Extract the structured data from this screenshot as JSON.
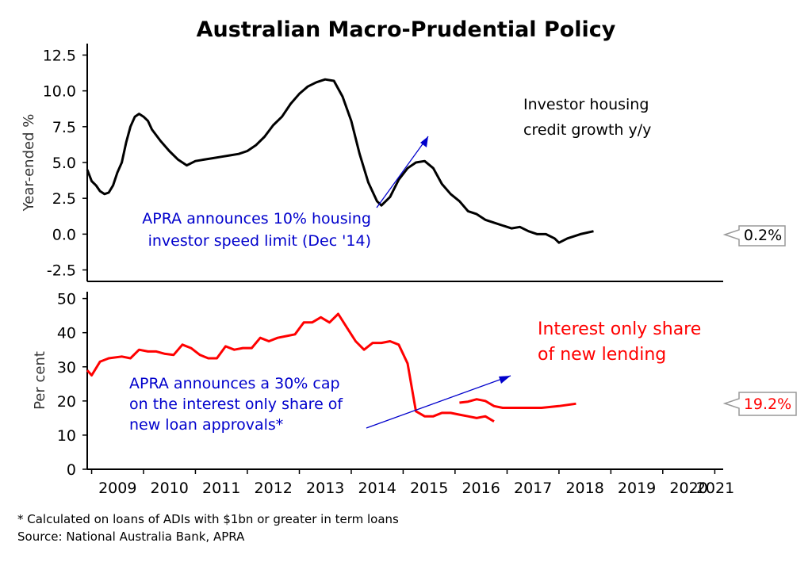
{
  "colors": {
    "investor_line": "#000000",
    "interest_only_line": "#ff0000",
    "annotation": "#0000cc",
    "callout_border": "#999999"
  },
  "chart_data": {
    "title": "Australian Macro-Prudential Policy",
    "x_axis": {
      "type": "date",
      "range": [
        "2008-12-01",
        "2021-03-01"
      ],
      "tick_labels": [
        "2009",
        "2010",
        "2011",
        "2012",
        "2013",
        "2014",
        "2015",
        "2016",
        "2017",
        "2018",
        "2019",
        "2020",
        "2021"
      ]
    },
    "panels": [
      {
        "type": "line",
        "ylabel": "Year-ended %",
        "ylim": [
          -3.3,
          13.3
        ],
        "y_ticks": [
          12.5,
          10.0,
          7.5,
          5.0,
          2.5,
          0.0,
          -2.5
        ],
        "y_tick_labels": [
          "12.5",
          "10.0",
          "7.5",
          "5.0",
          "2.5",
          "0.0",
          "-2.5"
        ],
        "series": [
          {
            "name": "Investor housing credit growth y/y",
            "label_lines": [
              "Investor housing",
              "credit growth y/y"
            ],
            "last_value_label": "0.2%",
            "points": [
              [
                "2008-12",
                4.5
              ],
              [
                "2009-01",
                3.7
              ],
              [
                "2009-02",
                3.4
              ],
              [
                "2009-03",
                3.0
              ],
              [
                "2009-04",
                2.8
              ],
              [
                "2009-05",
                2.9
              ],
              [
                "2009-06",
                3.4
              ],
              [
                "2009-07",
                4.3
              ],
              [
                "2009-08",
                5.0
              ],
              [
                "2009-09",
                6.4
              ],
              [
                "2009-10",
                7.5
              ],
              [
                "2009-11",
                8.2
              ],
              [
                "2009-12",
                8.4
              ],
              [
                "2010-01",
                8.2
              ],
              [
                "2010-02",
                7.9
              ],
              [
                "2010-03",
                7.3
              ],
              [
                "2010-05",
                6.5
              ],
              [
                "2010-07",
                5.8
              ],
              [
                "2010-09",
                5.2
              ],
              [
                "2010-11",
                4.8
              ],
              [
                "2011-01",
                5.1
              ],
              [
                "2011-03",
                5.2
              ],
              [
                "2011-05",
                5.3
              ],
              [
                "2011-07",
                5.4
              ],
              [
                "2011-09",
                5.5
              ],
              [
                "2011-11",
                5.6
              ],
              [
                "2012-01",
                5.8
              ],
              [
                "2012-03",
                6.2
              ],
              [
                "2012-05",
                6.8
              ],
              [
                "2012-07",
                7.6
              ],
              [
                "2012-09",
                8.2
              ],
              [
                "2012-11",
                9.1
              ],
              [
                "2013-01",
                9.8
              ],
              [
                "2013-03",
                10.3
              ],
              [
                "2013-05",
                10.6
              ],
              [
                "2013-07",
                10.8
              ],
              [
                "2013-09",
                10.7
              ],
              [
                "2013-11",
                9.6
              ],
              [
                "2014-01",
                7.9
              ],
              [
                "2014-03",
                5.6
              ],
              [
                "2014-05",
                3.6
              ],
              [
                "2014-07",
                2.3
              ],
              [
                "2014-08",
                2.0
              ],
              [
                "2014-10",
                2.6
              ],
              [
                "2014-12",
                3.8
              ],
              [
                "2015-02",
                4.6
              ],
              [
                "2015-04",
                5.0
              ],
              [
                "2015-06",
                5.1
              ],
              [
                "2015-08",
                4.6
              ],
              [
                "2015-10",
                3.5
              ],
              [
                "2015-12",
                2.8
              ],
              [
                "2016-02",
                2.3
              ],
              [
                "2016-04",
                1.6
              ],
              [
                "2016-06",
                1.4
              ],
              [
                "2016-08",
                1.0
              ],
              [
                "2016-10",
                0.8
              ],
              [
                "2016-12",
                0.6
              ],
              [
                "2017-02",
                0.4
              ],
              [
                "2017-04",
                0.5
              ],
              [
                "2017-06",
                0.2
              ],
              [
                "2017-08",
                0.0
              ],
              [
                "2017-10",
                0.0
              ],
              [
                "2017-12",
                -0.3
              ],
              [
                "2018-01",
                -0.6
              ],
              [
                "2018-03",
                -0.3
              ],
              [
                "2018-06",
                0.0
              ],
              [
                "2018-09",
                0.2
              ]
            ]
          }
        ]
      },
      {
        "type": "line",
        "ylabel": "Per cent",
        "ylim": [
          0,
          52
        ],
        "y_ticks": [
          50,
          40,
          30,
          20,
          10,
          0
        ],
        "y_tick_labels": [
          "50",
          "40",
          "30",
          "20",
          "10",
          "0"
        ],
        "series": [
          {
            "name": "Interest only share of new lending",
            "label_lines": [
              "Interest only share",
              "of new lending"
            ],
            "last_value_label": "19.2%",
            "segments": [
              [
                [
                  "2008-12",
                  29.0
                ],
                [
                  "2009-01",
                  27.5
                ],
                [
                  "2009-03",
                  31.5
                ],
                [
                  "2009-05",
                  32.5
                ],
                [
                  "2009-08",
                  33.0
                ],
                [
                  "2009-10",
                  32.5
                ],
                [
                  "2009-12",
                  35.0
                ],
                [
                  "2010-02",
                  34.5
                ],
                [
                  "2010-04",
                  34.5
                ],
                [
                  "2010-06",
                  33.8
                ],
                [
                  "2010-08",
                  33.5
                ],
                [
                  "2010-10",
                  36.5
                ],
                [
                  "2010-12",
                  35.5
                ],
                [
                  "2011-02",
                  33.5
                ],
                [
                  "2011-04",
                  32.5
                ],
                [
                  "2011-06",
                  32.5
                ],
                [
                  "2011-08",
                  36.0
                ],
                [
                  "2011-10",
                  35.0
                ],
                [
                  "2011-12",
                  35.5
                ],
                [
                  "2012-02",
                  35.5
                ],
                [
                  "2012-04",
                  38.5
                ],
                [
                  "2012-06",
                  37.5
                ],
                [
                  "2012-08",
                  38.5
                ],
                [
                  "2012-10",
                  39.0
                ],
                [
                  "2012-12",
                  39.5
                ],
                [
                  "2013-02",
                  43.0
                ],
                [
                  "2013-04",
                  43.0
                ],
                [
                  "2013-06",
                  44.5
                ],
                [
                  "2013-08",
                  43.0
                ],
                [
                  "2013-10",
                  45.5
                ],
                [
                  "2013-12",
                  41.5
                ],
                [
                  "2014-02",
                  37.5
                ],
                [
                  "2014-04",
                  35.0
                ],
                [
                  "2014-06",
                  37.0
                ],
                [
                  "2014-08",
                  37.0
                ],
                [
                  "2014-10",
                  37.5
                ],
                [
                  "2014-12",
                  36.5
                ],
                [
                  "2015-02",
                  31.0
                ],
                [
                  "2015-04",
                  17.0
                ],
                [
                  "2015-06",
                  15.5
                ],
                [
                  "2015-08",
                  15.5
                ],
                [
                  "2015-10",
                  16.5
                ],
                [
                  "2015-12",
                  16.5
                ],
                [
                  "2016-02",
                  16.0
                ],
                [
                  "2016-04",
                  15.5
                ],
                [
                  "2016-06",
                  15.0
                ],
                [
                  "2016-08",
                  15.5
                ],
                [
                  "2016-10",
                  14.0
                ]
              ],
              [
                [
                  "2016-02",
                  19.5
                ],
                [
                  "2016-04",
                  19.8
                ],
                [
                  "2016-06",
                  20.5
                ],
                [
                  "2016-08",
                  20.0
                ],
                [
                  "2016-10",
                  18.5
                ],
                [
                  "2016-12",
                  18.0
                ],
                [
                  "2017-03",
                  18.0
                ],
                [
                  "2017-06",
                  18.0
                ],
                [
                  "2017-09",
                  18.0
                ],
                [
                  "2018-01",
                  18.5
                ],
                [
                  "2018-05",
                  19.2
                ]
              ]
            ]
          }
        ]
      }
    ],
    "annotations": [
      {
        "panel": 0,
        "lines": [
          "APRA announces 10% housing",
          "investor speed limit (Dec '14)"
        ]
      },
      {
        "panel": 1,
        "lines": [
          "APRA announces a 30% cap",
          "on the interest only share of",
          "new loan approvals*"
        ]
      }
    ]
  },
  "footnotes": [
    "* Calculated on loans of ADIs with $1bn or greater in term loans",
    "Source: National Australia Bank, APRA"
  ]
}
